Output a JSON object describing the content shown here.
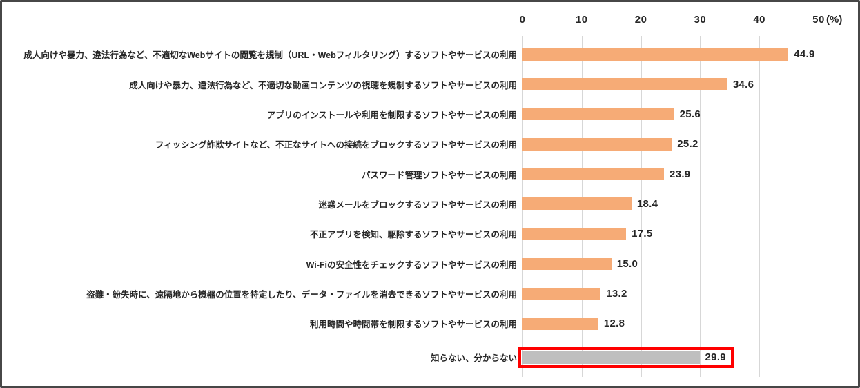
{
  "chart_data": {
    "type": "bar",
    "orientation": "horizontal",
    "title": "",
    "xlabel": "(%)",
    "unit_label": "(%)",
    "xlim": [
      0,
      50
    ],
    "axis_ticks": [
      0,
      10,
      20,
      30,
      40,
      50
    ],
    "grid": true,
    "categories": [
      "成人向けや暴力、違法行為など、不適切なWebサイトの閲覧を規制（URL・Webフィルタリング）するソフトやサービスの利用",
      "成人向けや暴力、違法行為など、不適切な動画コンテンツの視聴を規制するソフトやサービスの利用",
      "アプリのインストールや利用を制限するソフトやサービスの利用",
      "フィッシング詐欺サイトなど、不正なサイトへの接続をブロックするソフトやサービスの利用",
      "パスワード管理ソフトやサービスの利用",
      "迷惑メールをブロックするソフトやサービスの利用",
      "不正アプリを検知、駆除するソフトやサービスの利用",
      "Wi-Fiの安全性をチェックするソフトやサービスの利用",
      "盗難・紛失時に、遠隔地から機器の位置を特定したり、データ・ファイルを消去できるソフトやサービスの利用",
      "利用時間や時間帯を制限するソフトやサービスの利用",
      "知らない、分からない"
    ],
    "values": [
      44.9,
      34.6,
      25.6,
      25.2,
      23.9,
      18.4,
      17.5,
      15.0,
      13.2,
      12.8,
      29.9
    ],
    "value_labels": [
      "44.9",
      "34.6",
      "25.6",
      "25.2",
      "23.9",
      "18.4",
      "17.5",
      "15.0",
      "13.2",
      "12.8",
      "29.9"
    ],
    "highlight_index": 10,
    "colors": {
      "bar": "#f6ab76",
      "highlight_bar": "#bfbfbf",
      "highlight_box": "#ff0000",
      "gridline": "#d7d7d7",
      "text": "#262626",
      "frame_border": "#474747",
      "background": "#ffffff"
    }
  }
}
